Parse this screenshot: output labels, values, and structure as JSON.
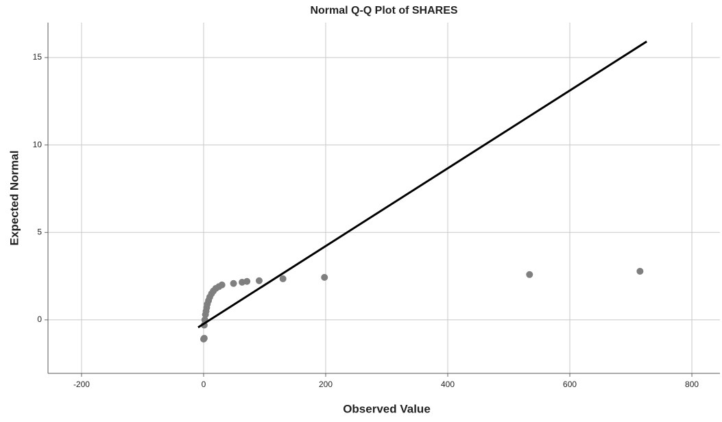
{
  "chart_data": {
    "type": "scatter",
    "title": "Normal Q-Q Plot of SHARES",
    "x_label": "Observed Value",
    "y_label": "Expected Normal",
    "xlim": [
      -255,
      846
    ],
    "ylim": [
      -3.06,
      17.0
    ],
    "xticks": [
      -200,
      0,
      200,
      400,
      600,
      800
    ],
    "yticks": [
      0,
      5,
      10,
      15
    ],
    "grid": true,
    "series": [
      {
        "color": "#7f7f7f",
        "x": [
          0,
          1,
          1,
          2,
          3,
          4,
          5,
          6,
          8,
          10,
          13,
          16,
          20,
          25,
          30,
          49,
          63,
          71,
          91,
          130,
          198,
          534,
          715
        ],
        "values": [
          -1.1,
          -1.05,
          -0.3,
          0.0,
          0.3,
          0.5,
          0.7,
          0.9,
          1.1,
          1.3,
          1.5,
          1.65,
          1.8,
          1.9,
          2.0,
          2.08,
          2.15,
          2.2,
          2.24,
          2.35,
          2.43,
          2.59,
          2.78
        ]
      }
    ],
    "reference_line": {
      "color": "#000000",
      "x": [
        -9,
        726
      ],
      "values": [
        -0.43,
        15.92
      ]
    }
  }
}
